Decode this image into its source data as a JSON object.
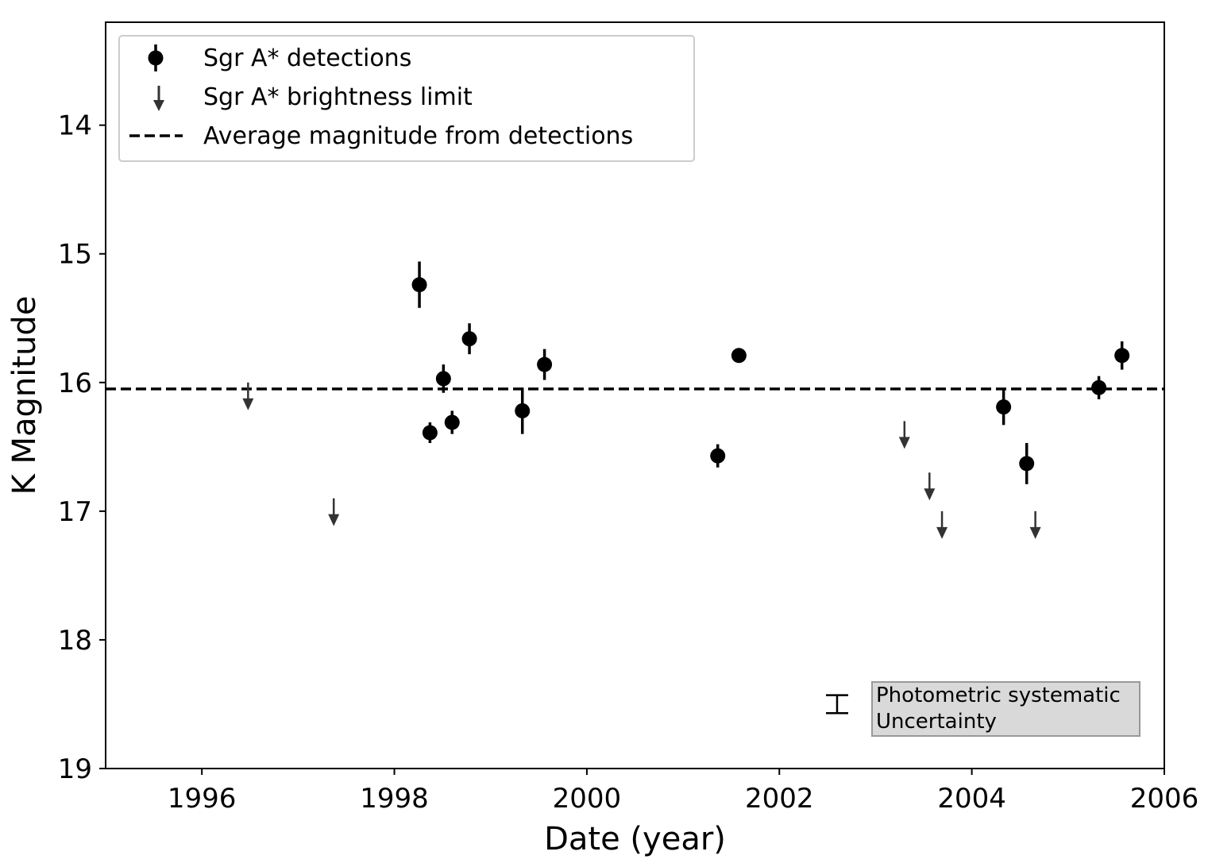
{
  "chart_data": {
    "type": "scatter",
    "title": "",
    "xlabel": "Date (year)",
    "ylabel": "K Magnitude",
    "xlim": [
      1995,
      2006
    ],
    "ylim": [
      19,
      13.2
    ],
    "y_inverted": true,
    "grid": false,
    "xticks": [
      1996,
      1998,
      2000,
      2002,
      2004,
      2006
    ],
    "yticks": [
      14,
      15,
      16,
      17,
      18,
      19
    ],
    "legend": {
      "placement": "top-left",
      "entries": [
        {
          "label": "Sgr A* detections",
          "marker": "point-errorbar"
        },
        {
          "label": "Sgr A* brightness limit",
          "marker": "down-arrow"
        },
        {
          "label": "Average magnitude from detections",
          "marker": "dashed-line"
        }
      ]
    },
    "series": [
      {
        "name": "Sgr A* detections",
        "color": "#000000",
        "points": [
          {
            "x": 1998.26,
            "y": 15.24,
            "err": 0.18
          },
          {
            "x": 1998.37,
            "y": 16.39,
            "err": 0.08
          },
          {
            "x": 1998.51,
            "y": 15.97,
            "err": 0.11
          },
          {
            "x": 1998.6,
            "y": 16.31,
            "err": 0.09
          },
          {
            "x": 1998.78,
            "y": 15.66,
            "err": 0.12
          },
          {
            "x": 1999.33,
            "y": 16.22,
            "err": 0.18
          },
          {
            "x": 1999.56,
            "y": 15.86,
            "err": 0.12
          },
          {
            "x": 2001.36,
            "y": 16.57,
            "err": 0.09
          },
          {
            "x": 2001.58,
            "y": 15.79,
            "err": 0.03
          },
          {
            "x": 2004.33,
            "y": 16.19,
            "err": 0.14
          },
          {
            "x": 2004.57,
            "y": 16.63,
            "err": 0.16
          },
          {
            "x": 2005.32,
            "y": 16.04,
            "err": 0.09
          },
          {
            "x": 2005.56,
            "y": 15.79,
            "err": 0.11
          }
        ]
      },
      {
        "name": "Sgr A* brightness limit",
        "color": "#333333",
        "points": [
          {
            "x": 1996.48,
            "y": 16.0
          },
          {
            "x": 1997.37,
            "y": 16.9
          },
          {
            "x": 2003.3,
            "y": 16.3
          },
          {
            "x": 2003.56,
            "y": 16.7
          },
          {
            "x": 2003.69,
            "y": 17.0
          },
          {
            "x": 2004.66,
            "y": 17.0
          }
        ]
      }
    ],
    "average_magnitude": 16.05,
    "systematic_uncertainty": {
      "x": 2002.6,
      "y": 18.5,
      "err": 0.07,
      "label_lines": [
        "Photometric systematic",
        "Uncertainty"
      ]
    }
  }
}
